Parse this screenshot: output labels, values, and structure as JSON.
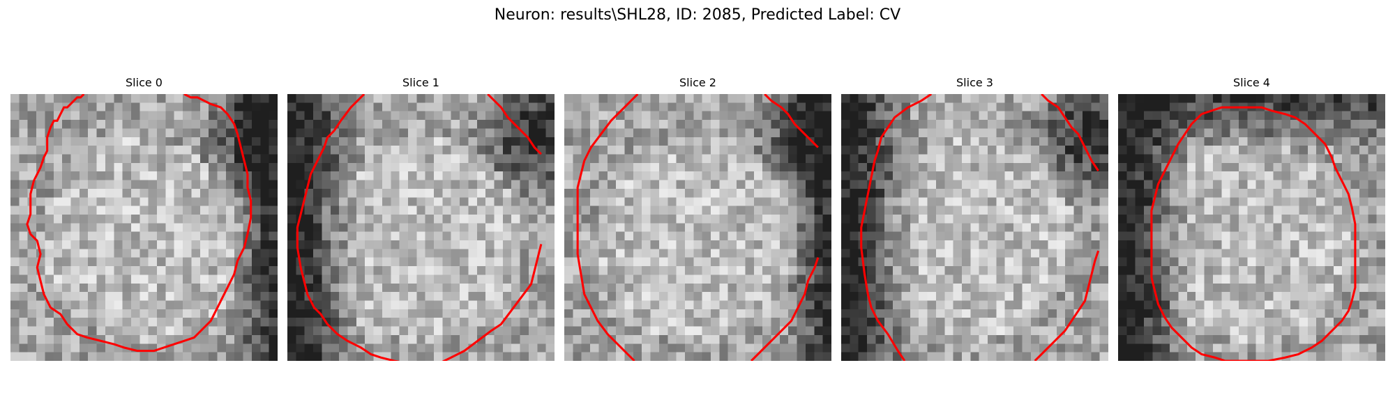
{
  "figure": {
    "title": "Neuron: results\\SHL28, ID: 2085, Predicted Label: CV",
    "outline_color": "#ff0000"
  },
  "panels": [
    {
      "title": "Slice 0",
      "dark_edges": [
        "right",
        "top-right"
      ],
      "outline": [
        [
          110,
          0
        ],
        [
          105,
          5
        ],
        [
          100,
          5
        ],
        [
          95,
          10
        ],
        [
          90,
          15
        ],
        [
          85,
          20
        ],
        [
          80,
          20
        ],
        [
          75,
          30
        ],
        [
          70,
          40
        ],
        [
          65,
          40
        ],
        [
          60,
          50
        ],
        [
          55,
          65
        ],
        [
          55,
          85
        ],
        [
          50,
          95
        ],
        [
          45,
          110
        ],
        [
          40,
          120
        ],
        [
          35,
          130
        ],
        [
          30,
          150
        ],
        [
          30,
          180
        ],
        [
          25,
          195
        ],
        [
          30,
          210
        ],
        [
          40,
          220
        ],
        [
          45,
          240
        ],
        [
          40,
          260
        ],
        [
          45,
          280
        ],
        [
          50,
          300
        ],
        [
          60,
          320
        ],
        [
          75,
          330
        ],
        [
          85,
          345
        ],
        [
          100,
          360
        ],
        [
          115,
          365
        ],
        [
          135,
          370
        ],
        [
          155,
          375
        ],
        [
          170,
          380
        ],
        [
          190,
          385
        ],
        [
          215,
          385
        ],
        [
          230,
          380
        ],
        [
          245,
          375
        ],
        [
          260,
          370
        ],
        [
          275,
          365
        ],
        [
          285,
          355
        ],
        [
          295,
          345
        ],
        [
          300,
          340
        ],
        [
          305,
          330
        ],
        [
          315,
          310
        ],
        [
          325,
          290
        ],
        [
          335,
          270
        ],
        [
          340,
          250
        ],
        [
          350,
          230
        ],
        [
          355,
          210
        ],
        [
          360,
          185
        ],
        [
          360,
          160
        ],
        [
          355,
          140
        ],
        [
          355,
          120
        ],
        [
          350,
          100
        ],
        [
          345,
          80
        ],
        [
          340,
          60
        ],
        [
          335,
          45
        ],
        [
          325,
          30
        ],
        [
          315,
          20
        ],
        [
          300,
          15
        ],
        [
          290,
          10
        ],
        [
          280,
          5
        ],
        [
          270,
          5
        ],
        [
          260,
          0
        ]
      ]
    },
    {
      "title": "Slice 1",
      "dark_edges": [
        "left",
        "top-right"
      ],
      "outline_segments": [
        [
          [
            115,
            0
          ],
          [
            110,
            5
          ],
          [
            95,
            20
          ],
          [
            80,
            40
          ],
          [
            70,
            55
          ],
          [
            60,
            65
          ],
          [
            55,
            80
          ],
          [
            45,
            100
          ],
          [
            35,
            120
          ],
          [
            30,
            140
          ],
          [
            25,
            160
          ],
          [
            20,
            180
          ],
          [
            15,
            200
          ],
          [
            15,
            230
          ],
          [
            20,
            260
          ],
          [
            25,
            280
          ],
          [
            30,
            300
          ],
          [
            40,
            320
          ],
          [
            50,
            330
          ],
          [
            60,
            345
          ],
          [
            75,
            360
          ],
          [
            90,
            370
          ],
          [
            110,
            380
          ],
          [
            125,
            390
          ],
          [
            140,
            395
          ],
          [
            160,
            400
          ],
          [
            185,
            405
          ],
          [
            205,
            405
          ]
        ],
        [
          [
            225,
            405
          ],
          [
            245,
            395
          ],
          [
            265,
            385
          ],
          [
            285,
            370
          ],
          [
            305,
            355
          ],
          [
            320,
            345
          ],
          [
            335,
            325
          ],
          [
            350,
            305
          ],
          [
            365,
            285
          ],
          [
            370,
            265
          ],
          [
            375,
            245
          ],
          [
            380,
            225
          ]
        ],
        [
          [
            300,
            0
          ],
          [
            310,
            10
          ],
          [
            320,
            20
          ],
          [
            330,
            35
          ],
          [
            345,
            50
          ],
          [
            360,
            65
          ],
          [
            370,
            80
          ],
          [
            380,
            90
          ]
        ]
      ]
    },
    {
      "title": "Slice 2",
      "dark_edges": [
        "right",
        "top-right"
      ],
      "outline_segments": [
        [
          [
            110,
            0
          ],
          [
            100,
            10
          ],
          [
            90,
            20
          ],
          [
            80,
            30
          ],
          [
            70,
            40
          ],
          [
            55,
            60
          ],
          [
            40,
            80
          ],
          [
            30,
            100
          ],
          [
            25,
            120
          ],
          [
            20,
            140
          ],
          [
            20,
            160
          ],
          [
            20,
            180
          ],
          [
            20,
            200
          ],
          [
            20,
            220
          ],
          [
            20,
            240
          ],
          [
            25,
            270
          ],
          [
            30,
            300
          ],
          [
            40,
            320
          ],
          [
            50,
            340
          ],
          [
            65,
            360
          ],
          [
            80,
            375
          ],
          [
            95,
            390
          ],
          [
            105,
            400
          ]
        ],
        [
          [
            280,
            400
          ],
          [
            295,
            385
          ],
          [
            310,
            370
          ],
          [
            325,
            355
          ],
          [
            340,
            340
          ],
          [
            350,
            320
          ],
          [
            360,
            300
          ],
          [
            365,
            280
          ],
          [
            375,
            260
          ],
          [
            380,
            245
          ]
        ],
        [
          [
            300,
            0
          ],
          [
            310,
            10
          ],
          [
            325,
            20
          ],
          [
            335,
            30
          ],
          [
            345,
            45
          ],
          [
            355,
            55
          ],
          [
            370,
            70
          ],
          [
            380,
            80
          ]
        ]
      ]
    },
    {
      "title": "Slice 3",
      "dark_edges": [
        "left",
        "top-right"
      ],
      "outline_segments": [
        [
          [
            135,
            0
          ],
          [
            120,
            10
          ],
          [
            100,
            20
          ],
          [
            80,
            35
          ],
          [
            70,
            50
          ],
          [
            60,
            65
          ],
          [
            55,
            85
          ],
          [
            50,
            100
          ],
          [
            45,
            125
          ],
          [
            40,
            150
          ],
          [
            35,
            175
          ],
          [
            30,
            200
          ],
          [
            30,
            230
          ],
          [
            35,
            270
          ],
          [
            40,
            300
          ],
          [
            45,
            320
          ],
          [
            55,
            340
          ],
          [
            70,
            360
          ],
          [
            85,
            385
          ],
          [
            95,
            400
          ]
        ],
        [
          [
            290,
            400
          ],
          [
            305,
            385
          ],
          [
            320,
            370
          ],
          [
            335,
            355
          ],
          [
            345,
            340
          ],
          [
            355,
            325
          ],
          [
            365,
            310
          ],
          [
            370,
            290
          ],
          [
            375,
            270
          ],
          [
            380,
            250
          ],
          [
            385,
            235
          ]
        ],
        [
          [
            300,
            0
          ],
          [
            310,
            10
          ],
          [
            325,
            20
          ],
          [
            335,
            35
          ],
          [
            345,
            50
          ],
          [
            355,
            60
          ],
          [
            365,
            80
          ],
          [
            375,
            100
          ],
          [
            385,
            115
          ]
        ]
      ]
    },
    {
      "title": "Slice 4",
      "dark_edges": [
        "left",
        "top"
      ],
      "outline": [
        [
          125,
          30
        ],
        [
          140,
          25
        ],
        [
          155,
          20
        ],
        [
          170,
          20
        ],
        [
          185,
          20
        ],
        [
          200,
          20
        ],
        [
          215,
          20
        ],
        [
          230,
          25
        ],
        [
          250,
          30
        ],
        [
          265,
          35
        ],
        [
          280,
          45
        ],
        [
          295,
          60
        ],
        [
          310,
          75
        ],
        [
          320,
          95
        ],
        [
          325,
          110
        ],
        [
          335,
          130
        ],
        [
          345,
          150
        ],
        [
          350,
          170
        ],
        [
          355,
          195
        ],
        [
          355,
          220
        ],
        [
          355,
          245
        ],
        [
          355,
          270
        ],
        [
          355,
          290
        ],
        [
          350,
          310
        ],
        [
          345,
          325
        ],
        [
          335,
          340
        ],
        [
          320,
          355
        ],
        [
          305,
          370
        ],
        [
          290,
          380
        ],
        [
          270,
          390
        ],
        [
          250,
          395
        ],
        [
          225,
          400
        ],
        [
          200,
          400
        ],
        [
          175,
          400
        ],
        [
          160,
          400
        ],
        [
          145,
          395
        ],
        [
          125,
          390
        ],
        [
          110,
          380
        ],
        [
          95,
          365
        ],
        [
          80,
          350
        ],
        [
          70,
          335
        ],
        [
          60,
          315
        ],
        [
          55,
          295
        ],
        [
          50,
          275
        ],
        [
          50,
          250
        ],
        [
          50,
          225
        ],
        [
          50,
          200
        ],
        [
          50,
          175
        ],
        [
          55,
          155
        ],
        [
          60,
          135
        ],
        [
          70,
          115
        ],
        [
          80,
          95
        ],
        [
          90,
          75
        ],
        [
          100,
          60
        ],
        [
          110,
          45
        ],
        [
          125,
          30
        ]
      ]
    }
  ]
}
